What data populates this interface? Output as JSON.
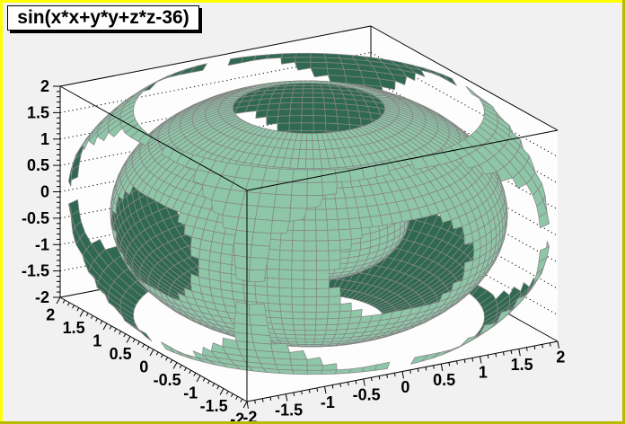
{
  "window": {
    "background_color": "#f1f1f1",
    "frame_fill_color": "#fdfdfd",
    "border_color_light": "#ffff00",
    "border_color_dark": "#b9b900"
  },
  "title": {
    "text": "sin(x*x+y*y+z*z-36)"
  },
  "chart_data": {
    "type": "3d-isosurface",
    "title": "sin(x*x+y*y+z*z-36)",
    "function": "sin(x*x+y*y+z*z-36)",
    "domain": {
      "x": [
        -2,
        2
      ],
      "y": [
        -2,
        2
      ],
      "z": [
        -2,
        2
      ]
    },
    "axes": {
      "x": {
        "range": [
          -2,
          2
        ],
        "tick_values": [
          -2,
          -1.5,
          -1,
          -0.5,
          0,
          0.5,
          1,
          1.5,
          2
        ],
        "tick_labels": [
          "-2",
          "-1.5",
          "-1",
          "-0.5",
          "0",
          "0.5",
          "1",
          "1.5",
          "2"
        ],
        "minor_tick_step": 0.1
      },
      "y": {
        "range": [
          -2,
          2
        ],
        "tick_values": [
          2,
          1.5,
          1,
          0.5,
          0,
          -0.5,
          -1,
          -1.5,
          -2
        ],
        "tick_labels": [
          "2",
          "1.5",
          "1",
          "0.5",
          "0",
          "-0.5",
          "-1",
          "-1.5",
          "-2"
        ],
        "minor_tick_step": 0.1
      },
      "z": {
        "range": [
          -2,
          2
        ],
        "tick_values": [
          2,
          1.5,
          1,
          0.5,
          0,
          -0.5,
          -1,
          -1.5,
          -2
        ],
        "tick_labels": [
          "2",
          "1.5",
          "1",
          "0.5",
          "0",
          "-0.5",
          "-1",
          "-1.5",
          "-2"
        ],
        "minor_tick_step": 0.1
      }
    },
    "grid": {
      "style": "dotted",
      "on_back_walls": true,
      "levels": [
        -1.5,
        -1,
        -0.5,
        0,
        0.5,
        1,
        1.5
      ]
    },
    "surface_style": {
      "front_color": "#8EC7A8",
      "back_color": "#2F6951",
      "mesh_color": "#868686",
      "frame_color": "#000000"
    },
    "isosurface": {
      "shell_radii": [
        1.11,
        2.19,
        2.74,
        3.33
      ]
    }
  }
}
